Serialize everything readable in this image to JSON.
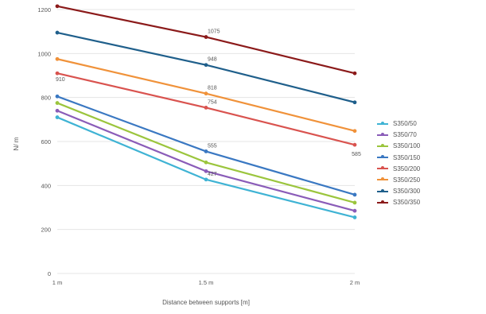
{
  "chart_data": {
    "type": "line",
    "title": "",
    "xlabel": "Distance between supports [m]",
    "ylabel": "N/ m",
    "categories": [
      "1 m",
      "1.5 m",
      "2 m"
    ],
    "ylim": [
      0,
      1200
    ],
    "yticks": [
      0,
      200,
      400,
      600,
      800,
      1000,
      1200
    ],
    "ytick_labels": [
      "0",
      "200",
      "400",
      "600",
      "800",
      "1000",
      "1200"
    ],
    "grid": true,
    "legend_position": "right",
    "series": [
      {
        "name": "S350/50",
        "color": "#3fb3d4",
        "values": [
          710,
          427,
          255
        ],
        "labels": [
          null,
          "427",
          null
        ]
      },
      {
        "name": "S350/70",
        "color": "#8a5cb8",
        "values": [
          740,
          465,
          285
        ],
        "labels": [
          null,
          null,
          null
        ]
      },
      {
        "name": "S350/100",
        "color": "#9bc53d",
        "values": [
          775,
          505,
          322
        ],
        "labels": [
          null,
          null,
          null
        ]
      },
      {
        "name": "S350/150",
        "color": "#3a78c2",
        "values": [
          805,
          555,
          358
        ],
        "labels": [
          null,
          "555",
          null
        ]
      },
      {
        "name": "S350/200",
        "color": "#d9534f",
        "values": [
          910,
          754,
          585
        ],
        "labels": [
          "910",
          "754",
          "585"
        ]
      },
      {
        "name": "S350/250",
        "color": "#f0923a",
        "values": [
          975,
          818,
          648
        ],
        "labels": [
          null,
          "818",
          null
        ]
      },
      {
        "name": "S350/300",
        "color": "#1f5f8b",
        "values": [
          1095,
          948,
          778
        ],
        "labels": [
          null,
          "948",
          null
        ]
      },
      {
        "name": "S350/350",
        "color": "#8b1a1a",
        "values": [
          1215,
          1075,
          910
        ],
        "labels": [
          null,
          "1075",
          null
        ]
      }
    ]
  }
}
